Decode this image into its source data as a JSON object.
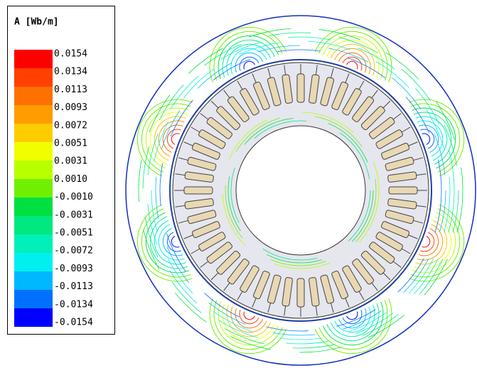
{
  "legend": {
    "title": "A [Wb/m]",
    "labels": [
      "0.0154",
      "0.0134",
      "0.0113",
      "0.0093",
      "0.0072",
      "0.0051",
      "0.0031",
      "0.0010",
      "-0.0010",
      "-0.0031",
      "-0.0051",
      "-0.0072",
      "-0.0093",
      "-0.0113",
      "-0.0134",
      "-0.0154"
    ],
    "colors": [
      "#ff0000",
      "#ff4000",
      "#ff7000",
      "#ff9c00",
      "#ffcc00",
      "#f0ff00",
      "#b8ff00",
      "#70f000",
      "#00e040",
      "#00e880",
      "#00f0b8",
      "#00f0f0",
      "#00b8ff",
      "#0070ff",
      "#0000ff"
    ]
  }
}
